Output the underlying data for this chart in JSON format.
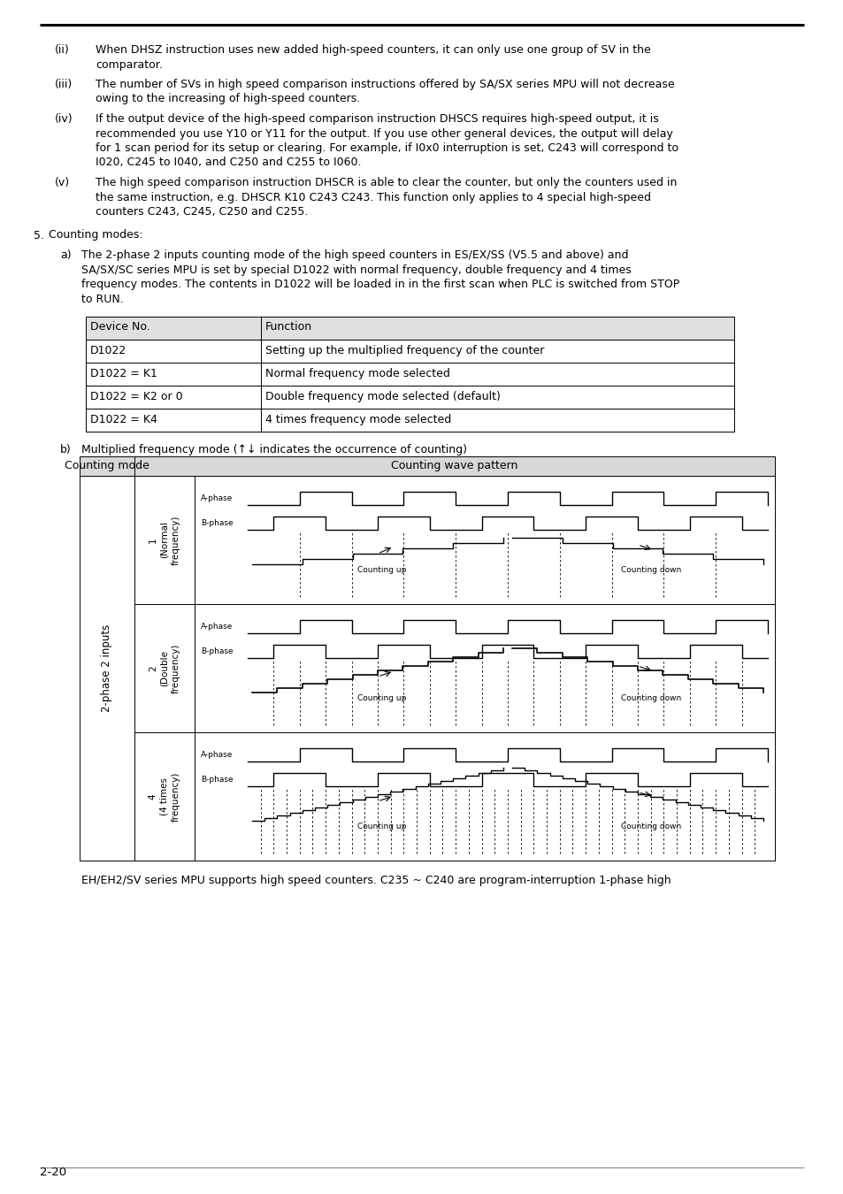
{
  "bg_color": "#ffffff",
  "page_number": "2-20",
  "text_color": "#000000",
  "items": [
    {
      "label": "(ii)",
      "lines": [
        "When DHSZ instruction uses new added high-speed counters, it can only use one group of SV in the",
        "comparator."
      ]
    },
    {
      "label": "(iii)",
      "lines": [
        "The number of SVs in high speed comparison instructions offered by SA/SX series MPU will not decrease",
        "owing to the increasing of high-speed counters."
      ]
    },
    {
      "label": "(iv)",
      "lines": [
        "If the output device of the high-speed comparison instruction DHSCS requires high-speed output, it is",
        "recommended you use Y10 or Y11 for the output. If you use other general devices, the output will delay",
        "for 1 scan period for its setup or clearing. For example, if I0x0 interruption is set, C243 will correspond to",
        "I020, C245 to I040, and C250 and C255 to I060."
      ]
    },
    {
      "label": "(v)",
      "lines": [
        "The high speed comparison instruction DHSCR is able to clear the counter, but only the counters used in",
        "the same instruction, e.g. DHSCR K10 C243 C243. This function only applies to 4 special high-speed",
        "counters C243, C245, C250 and C255."
      ]
    }
  ],
  "table_header": [
    "Device No.",
    "Function"
  ],
  "table_rows": [
    [
      "D1022",
      "Setting up the multiplied frequency of the counter"
    ],
    [
      "D1022 = K1",
      "Normal frequency mode selected"
    ],
    [
      "D1022 = K2 or 0",
      "Double frequency mode selected (default)"
    ],
    [
      "D1022 = K4",
      "4 times frequency mode selected"
    ]
  ],
  "sectionb_text": "Multiplied frequency mode (↑↓ indicates the occurrence of counting)",
  "footer_text": "EH/EH2/SV series MPU supports high speed counters. C235 ~ C240 are program-interruption 1-phase high",
  "wave_rows": [
    {
      "num": "1",
      "inner": "(Normal\nfrequency)",
      "mode": 1
    },
    {
      "num": "2",
      "inner": "(Double\nfrequency)",
      "mode": 2
    },
    {
      "num": "4",
      "inner": "(4 times\nfrequency)",
      "mode": 4
    }
  ]
}
